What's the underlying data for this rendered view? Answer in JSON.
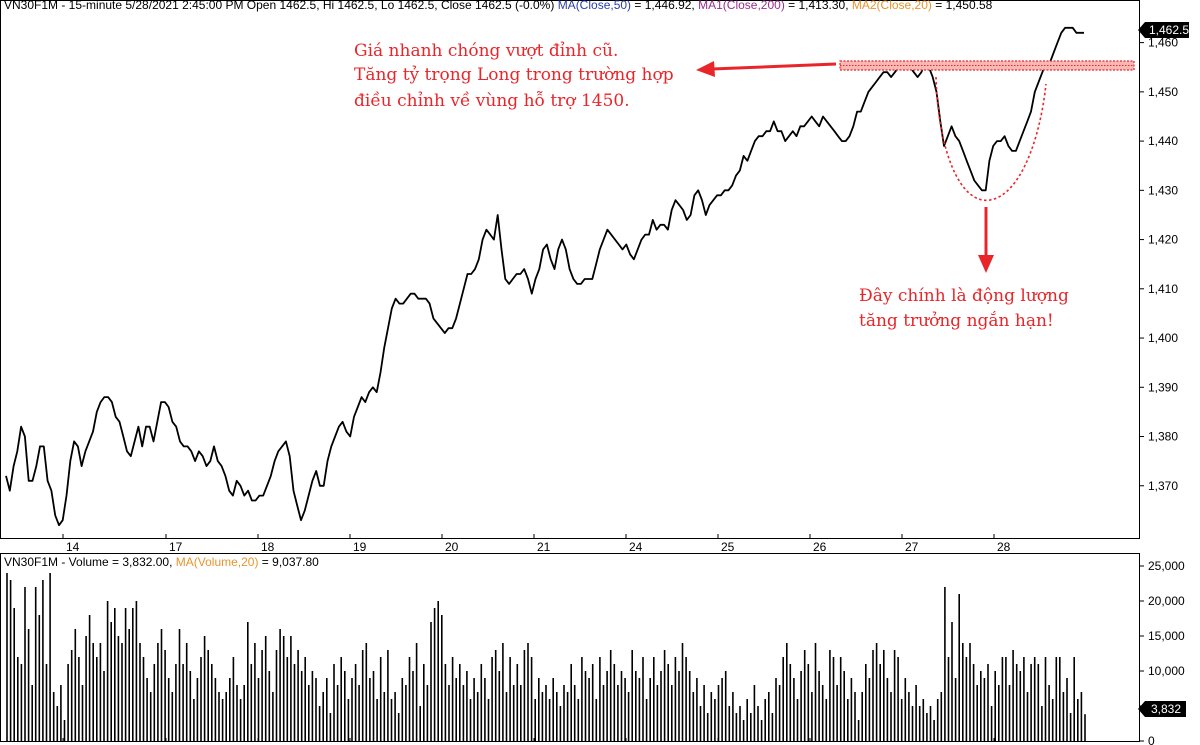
{
  "header": {
    "price_parts": [
      {
        "text": "VN30F1M - 15-minute 5/28/2021 2:45:00 PM Open 1462.5, Hi 1462.5, Lo 1462.5, Close 1462.5 (-0.0%) ",
        "color": "#000000"
      },
      {
        "text": "MA(Close,50)",
        "color": "#2b3fa8"
      },
      {
        "text": " = 1,446.92, ",
        "color": "#000000"
      },
      {
        "text": "MA1(Close,200)",
        "color": "#9a2f8f"
      },
      {
        "text": " = 1,413.30, ",
        "color": "#000000"
      },
      {
        "text": "MA2(Close,20)",
        "color": "#e8942e"
      },
      {
        "text": " = 1,450.58",
        "color": "#000000"
      }
    ],
    "volume_parts": [
      {
        "text": "VN30F1M - Volume = 3,832.00, ",
        "color": "#000000"
      },
      {
        "text": "MA(Volume,20)",
        "color": "#e8942e"
      },
      {
        "text": " = 9,037.80",
        "color": "#000000"
      }
    ]
  },
  "annotations": {
    "top_lines": [
      "Giá nhanh chóng vượt đỉnh cũ.",
      "Tăng tỷ trọng Long trong trường hợp",
      "điều chỉnh về vùng hỗ trợ 1450."
    ],
    "bottom_lines": [
      "Đây chính là động lượng",
      "tăng trưởng ngắn hạn!"
    ]
  },
  "colors": {
    "line": "#000000",
    "annotation": "#e8262a",
    "last_price_box": "#000000",
    "last_price_text": "#ffffff"
  },
  "chart_data": [
    {
      "type": "line",
      "series": [
        {
          "values": [
            1372,
            1369,
            1374,
            1377,
            1382,
            1380,
            1371,
            1371,
            1374,
            1378,
            1378,
            1371,
            1369,
            1364,
            1362,
            1363,
            1368,
            1375,
            1379,
            1378,
            1374,
            1377,
            1379,
            1381,
            1385,
            1387,
            1388,
            1388,
            1387,
            1384,
            1383,
            1380,
            1377,
            1376,
            1379,
            1382,
            1378,
            1382,
            1382,
            1379,
            1383,
            1387,
            1387,
            1386,
            1383,
            1382,
            1379,
            1378,
            1378,
            1377,
            1375,
            1377,
            1376,
            1374,
            1375,
            1378,
            1375,
            1374,
            1372,
            1369,
            1368,
            1371,
            1370,
            1368,
            1369,
            1367,
            1367,
            1368,
            1368,
            1370,
            1372,
            1375,
            1377,
            1378,
            1379,
            1376,
            1369,
            1366,
            1363,
            1365,
            1368,
            1371,
            1373,
            1370,
            1370,
            1375,
            1378,
            1380,
            1382,
            1383,
            1381,
            1380,
            1384,
            1386,
            1388,
            1387,
            1389,
            1390,
            1389,
            1393,
            1398,
            1402,
            1406,
            1408,
            1407,
            1407,
            1408,
            1409,
            1409,
            1408,
            1408,
            1408,
            1407,
            1404,
            1403,
            1402,
            1401,
            1402,
            1402,
            1404,
            1407,
            1410,
            1413,
            1413,
            1414,
            1416,
            1420,
            1422,
            1421,
            1420,
            1425,
            1418,
            1412,
            1411,
            1412,
            1413,
            1413,
            1414,
            1412,
            1409,
            1412,
            1414,
            1418,
            1419,
            1416,
            1414,
            1418,
            1420,
            1418,
            1414,
            1412,
            1411,
            1411,
            1412,
            1412,
            1412,
            1415,
            1418,
            1420,
            1422,
            1421,
            1420,
            1419,
            1418,
            1419,
            1417,
            1416,
            1418,
            1420,
            1421,
            1421,
            1424,
            1422,
            1423,
            1423,
            1422,
            1426,
            1428,
            1427,
            1426,
            1424,
            1425,
            1429,
            1430,
            1428,
            1425,
            1427,
            1428,
            1429,
            1429,
            1430,
            1430,
            1431,
            1433,
            1434,
            1437,
            1436,
            1438,
            1440,
            1441,
            1441,
            1442,
            1442,
            1444,
            1442,
            1442,
            1440,
            1441,
            1442,
            1441,
            1443,
            1443,
            1444,
            1445,
            1444,
            1443,
            1445,
            1444,
            1443,
            1442,
            1441,
            1440,
            1440,
            1441,
            1443,
            1446,
            1446,
            1448,
            1450,
            1451,
            1452,
            1453,
            1454,
            1454,
            1453,
            1454,
            1455,
            1455,
            1455,
            1455,
            1454,
            1453,
            1454,
            1456,
            1455,
            1453,
            1450,
            1444,
            1439,
            1441,
            1443,
            1441,
            1440,
            1438,
            1436,
            1434,
            1432,
            1431,
            1430,
            1430,
            1436,
            1439,
            1440,
            1440,
            1441,
            1439,
            1438,
            1438,
            1440,
            1442,
            1444,
            1446,
            1450,
            1452,
            1454,
            1456,
            1456,
            1458,
            1460,
            1462,
            1463,
            1463,
            1463,
            1462,
            1462,
            1462
          ]
        }
      ],
      "ylim": [
        1360,
        1465
      ],
      "yticks": [
        "1,370",
        "1,380",
        "1,390",
        "1,400",
        "1,410",
        "1,420",
        "1,430",
        "1,440",
        "1,450",
        "1,460"
      ],
      "xtick_labels": [
        "14",
        "17",
        "18",
        "19",
        "20",
        "21",
        "24",
        "25",
        "26",
        "27",
        "28"
      ],
      "last_price": "1,462.5",
      "grid": false
    },
    {
      "type": "bar",
      "series": [
        {
          "values": [
            24000,
            23000,
            19000,
            12000,
            11000,
            22000,
            16000,
            8000,
            22000,
            18000,
            23000,
            11000,
            24000,
            7000,
            5000,
            8000,
            3000,
            11000,
            13000,
            16000,
            12000,
            8000,
            15000,
            18000,
            14000,
            12000,
            14000,
            10000,
            20000,
            17000,
            19000,
            15000,
            14000,
            19000,
            16000,
            19000,
            20000,
            14000,
            12000,
            9000,
            7000,
            11000,
            14000,
            16000,
            13000,
            9000,
            7000,
            11000,
            16000,
            11000,
            14000,
            10000,
            6000,
            9000,
            12000,
            15000,
            13000,
            11000,
            9000,
            7000,
            6000,
            7000,
            9000,
            12000,
            8000,
            6000,
            8000,
            17000,
            11000,
            14000,
            9000,
            13000,
            15000,
            10000,
            7000,
            13000,
            16000,
            15000,
            12000,
            15000,
            11000,
            13000,
            10000,
            12000,
            8000,
            10000,
            9000,
            5000,
            7000,
            9000,
            4000,
            11000,
            8000,
            12000,
            10000,
            6000,
            9000,
            11000,
            8000,
            13000,
            14000,
            9000,
            10000,
            6000,
            12000,
            7000,
            13000,
            6000,
            7000,
            4000,
            9000,
            8000,
            12000,
            10000,
            14000,
            5000,
            11000,
            8000,
            17000,
            19000,
            20000,
            18000,
            11000,
            8000,
            12000,
            9000,
            11000,
            8000,
            10000,
            6000,
            9000,
            7000,
            11000,
            9000,
            6000,
            12000,
            13000,
            10000,
            14000,
            7000,
            12000,
            8000,
            11000,
            8000,
            13000,
            14000,
            12000,
            6000,
            9000,
            7000,
            8000,
            6000,
            9000,
            7000,
            5000,
            8000,
            7000,
            11000,
            8000,
            6000,
            12000,
            10000,
            9000,
            11000,
            6000,
            12000,
            8000,
            10000,
            13000,
            11000,
            8000,
            10000,
            9000,
            7000,
            13000,
            10000,
            9000,
            12000,
            6000,
            9000,
            12000,
            8000,
            10000,
            13000,
            11000,
            8000,
            12000,
            10000,
            14000,
            12000,
            10000,
            7000,
            9000,
            5000,
            8000,
            4000,
            7000,
            6000,
            8000,
            9000,
            10000,
            5000,
            7000,
            4000,
            5000,
            3000,
            6000,
            4000,
            8000,
            5000,
            3000,
            6000,
            7000,
            4000,
            9000,
            8000,
            12000,
            14000,
            11000,
            9000,
            6000,
            10000,
            13000,
            11000,
            7000,
            14000,
            10000,
            8000,
            6000,
            13000,
            12000,
            8000,
            12000,
            10000,
            6000,
            9000,
            7000,
            3000,
            7000,
            11000,
            9000,
            13000,
            14000,
            11000,
            13000,
            9000,
            7000,
            13000,
            12000,
            6000,
            9000,
            7000,
            5000,
            8000,
            5000,
            6000,
            4000,
            5000,
            3000,
            6000,
            7000,
            22000,
            12000,
            17000,
            9000,
            21000,
            14000,
            12000,
            14000,
            11000,
            8000,
            10000,
            9000,
            11000,
            5000,
            10000,
            8000,
            12000,
            12000,
            8000,
            13000,
            11000,
            10000,
            12000,
            7000,
            11000,
            12000,
            11000,
            5000,
            12000,
            8000,
            6000,
            12000,
            12000,
            7000,
            9000,
            4000,
            12000,
            6000,
            7000,
            3832
          ]
        }
      ],
      "ylim": [
        0,
        25000
      ],
      "yticks": [
        "0",
        "5,000",
        "10,000",
        "15,000",
        "20,000",
        "25,000"
      ],
      "last_value": "3,832"
    }
  ]
}
